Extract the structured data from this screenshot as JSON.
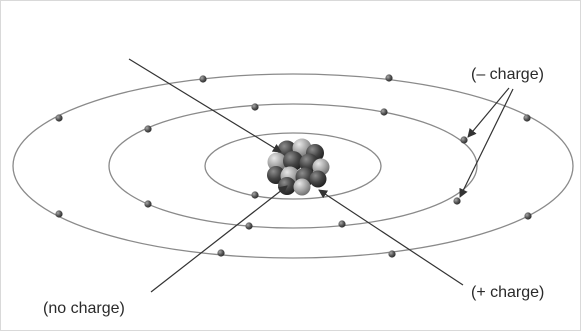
{
  "labels": {
    "electron": "(– charge)",
    "proton": "(+ charge)",
    "neutron": "(no charge)"
  },
  "colors": {
    "orbit": "#8a8a8a",
    "electron": "#444444",
    "arrow": "#333333",
    "nucleus_dark": "#3a3a3a",
    "nucleus_light": "#9a9a9a"
  }
}
